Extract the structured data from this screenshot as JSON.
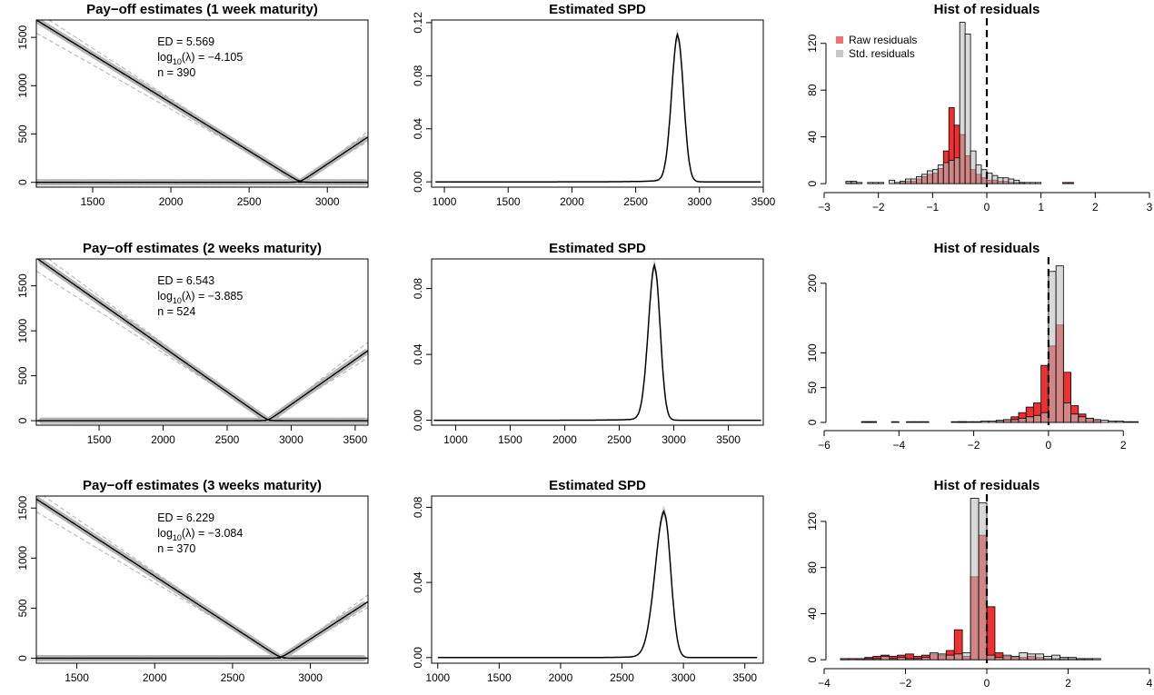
{
  "chart_data": [
    {
      "type": "line",
      "panel": "payoff",
      "title": "Pay−off estimates (1 week maturity)",
      "xlim": [
        1140,
        3260
      ],
      "ylim": [
        -50,
        1680
      ],
      "xticks": [
        1500,
        2000,
        2500,
        3000
      ],
      "yticks": [
        0,
        500,
        1000,
        1500
      ],
      "strike": 2825,
      "put_x0": 1140,
      "put_y0": 1680,
      "call_x1": 3260,
      "call_y1": 470,
      "points_range": [
        1150,
        3250
      ],
      "annotation": {
        "ed": "ED = 5.569",
        "log_prefix": "log",
        "log_sub": "10",
        "log_rest": "(λ) = −4.105",
        "n": "n = 390"
      }
    },
    {
      "type": "line",
      "panel": "spd",
      "title": "Estimated SPD",
      "xlim": [
        900,
        3500
      ],
      "ylim": [
        -0.004,
        0.122
      ],
      "xticks": [
        1000,
        1500,
        2000,
        2500,
        3000,
        3500
      ],
      "yticks": [
        0.0,
        0.04,
        0.08,
        0.12
      ],
      "ytick_labels": [
        "0.00",
        "0.04",
        "0.08",
        "0.12"
      ],
      "curve_xrange": [
        930,
        3480
      ],
      "peak_x": 2830,
      "peak_y": 0.109,
      "sd_left": 48,
      "sd_right": 45
    },
    {
      "type": "bar",
      "panel": "hist",
      "title": "Hist of residuals",
      "xlim": [
        -3,
        3
      ],
      "ylim": [
        -3,
        140
      ],
      "xticks": [
        -3,
        -2,
        -1,
        0,
        1,
        2,
        3
      ],
      "yticks": [
        0,
        40,
        80,
        120
      ],
      "axis_range": [
        -3,
        3
      ],
      "legend": [
        "Raw residuals",
        "Std. residuals"
      ],
      "raw_bins": {
        "start": -2.6,
        "width": 0.1,
        "counts": [
          1,
          1,
          0,
          0,
          0,
          0,
          0,
          0,
          0,
          0,
          1,
          2,
          2,
          4,
          6,
          8,
          9,
          13,
          28,
          65,
          50,
          42,
          24,
          12,
          8,
          5,
          3,
          3,
          2,
          2,
          1,
          1,
          1,
          0,
          0,
          0,
          0,
          0,
          0,
          0,
          1,
          1,
          0,
          0,
          0,
          0,
          0,
          0
        ]
      },
      "std_bins": {
        "start": -2.6,
        "width": 0.1,
        "counts": [
          2,
          2,
          1,
          0,
          1,
          1,
          1,
          0,
          3,
          1,
          2,
          4,
          4,
          6,
          8,
          11,
          12,
          16,
          18,
          20,
          22,
          138,
          128,
          28,
          16,
          12,
          9,
          7,
          5,
          5,
          4,
          3,
          1,
          1,
          1,
          1,
          0,
          0,
          0,
          0,
          0,
          0,
          0,
          0,
          0,
          0,
          0,
          0
        ]
      }
    },
    {
      "type": "line",
      "panel": "payoff",
      "title": "Pay−off estimates (2 weeks maturity)",
      "xlim": [
        1010,
        3600
      ],
      "ylim": [
        -50,
        1800
      ],
      "xticks": [
        1500,
        2000,
        2500,
        3000,
        3500
      ],
      "yticks": [
        0,
        500,
        1000,
        1500
      ],
      "strike": 2820,
      "put_x0": 1010,
      "put_y0": 1810,
      "call_x1": 3600,
      "call_y1": 780,
      "points_range": [
        1050,
        3580
      ],
      "annotation": {
        "ed": "ED = 6.543",
        "log_prefix": "log",
        "log_sub": "10",
        "log_rest": "(λ) = −3.885",
        "n": "n = 524"
      }
    },
    {
      "type": "line",
      "panel": "spd",
      "title": "Estimated SPD",
      "xlim": [
        780,
        3820
      ],
      "ylim": [
        -0.003,
        0.098
      ],
      "xticks": [
        1000,
        1500,
        2000,
        2500,
        3000,
        3500
      ],
      "yticks": [
        0.0,
        0.04,
        0.08
      ],
      "ytick_labels": [
        "0.00",
        "0.04",
        "0.08"
      ],
      "curve_xrange": [
        800,
        3800
      ],
      "peak_x": 2825,
      "peak_y": 0.0925,
      "sd_left": 58,
      "sd_right": 50
    },
    {
      "type": "bar",
      "panel": "hist",
      "title": "Hist of residuals",
      "xlim": [
        -6,
        2.7
      ],
      "ylim": [
        -4,
        235
      ],
      "xticks": [
        -6,
        -4,
        -2,
        0,
        2
      ],
      "yticks": [
        0,
        50,
        100,
        200
      ],
      "axis_range": [
        -6,
        2
      ],
      "raw_bins": {
        "start": -5.0,
        "width": 0.2,
        "counts": [
          1,
          1,
          0,
          0,
          0,
          0,
          0,
          1,
          0,
          0,
          0,
          0,
          0,
          1,
          0,
          0,
          0,
          0,
          2,
          4,
          8,
          14,
          22,
          28,
          82,
          110,
          140,
          72,
          24,
          12,
          6,
          3,
          0,
          0,
          0,
          0,
          0,
          0,
          0
        ]
      },
      "std_bins": {
        "start": -5.0,
        "width": 0.2,
        "counts": [
          1,
          1,
          0,
          0,
          1,
          0,
          1,
          0,
          1,
          0,
          0,
          0,
          1,
          1,
          1,
          1,
          2,
          2,
          3,
          4,
          4,
          6,
          8,
          10,
          14,
          217,
          225,
          28,
          12,
          8,
          6,
          4,
          3,
          2,
          2,
          1,
          1,
          0,
          0
        ]
      }
    },
    {
      "type": "line",
      "panel": "payoff",
      "title": "Pay−off estimates (3 weeks maturity)",
      "xlim": [
        1240,
        3370
      ],
      "ylim": [
        -50,
        1620
      ],
      "xticks": [
        1500,
        2000,
        2500,
        3000
      ],
      "yticks": [
        0,
        500,
        1000,
        1500
      ],
      "strike": 2810,
      "put_x0": 1240,
      "put_y0": 1590,
      "call_x1": 3370,
      "call_y1": 565,
      "points_range": [
        1250,
        3350
      ],
      "annotation": {
        "ed": "ED = 6.229",
        "log_prefix": "log",
        "log_sub": "10",
        "log_rest": "(λ) = −3.084",
        "n": "n = 370"
      }
    },
    {
      "type": "line",
      "panel": "spd",
      "title": "Estimated SPD",
      "xlim": [
        950,
        3650
      ],
      "ylim": [
        -0.003,
        0.086
      ],
      "xticks": [
        1000,
        1500,
        2000,
        2500,
        3000,
        3500
      ],
      "yticks": [
        0.0,
        0.04,
        0.08
      ],
      "ytick_labels": [
        "0.00",
        "0.04",
        "0.08"
      ],
      "curve_xrange": [
        1000,
        3600
      ],
      "peak_x": 2845,
      "peak_y": 0.0765,
      "sd_left": 75,
      "sd_right": 52
    },
    {
      "type": "bar",
      "panel": "hist",
      "title": "Hist of residuals",
      "xlim": [
        -4,
        4
      ],
      "ylim": [
        -3,
        142
      ],
      "xticks": [
        -4,
        -2,
        0,
        2,
        4
      ],
      "yticks": [
        0,
        40,
        80,
        120
      ],
      "axis_range": [
        -4,
        4
      ],
      "raw_bins": {
        "start": -3.6,
        "width": 0.2,
        "counts": [
          1,
          1,
          1,
          2,
          3,
          4,
          3,
          4,
          5,
          3,
          4,
          5,
          4,
          8,
          26,
          3,
          72,
          108,
          46,
          6,
          3,
          2,
          2,
          3,
          2,
          1,
          1,
          1,
          1,
          1,
          1,
          0,
          0
        ]
      },
      "std_bins": {
        "start": -3.6,
        "width": 0.2,
        "counts": [
          1,
          0,
          1,
          1,
          1,
          3,
          1,
          2,
          1,
          1,
          2,
          6,
          5,
          4,
          5,
          6,
          140,
          136,
          4,
          2,
          4,
          3,
          6,
          5,
          5,
          3,
          4,
          2,
          2,
          1,
          1,
          1,
          0
        ]
      }
    }
  ]
}
